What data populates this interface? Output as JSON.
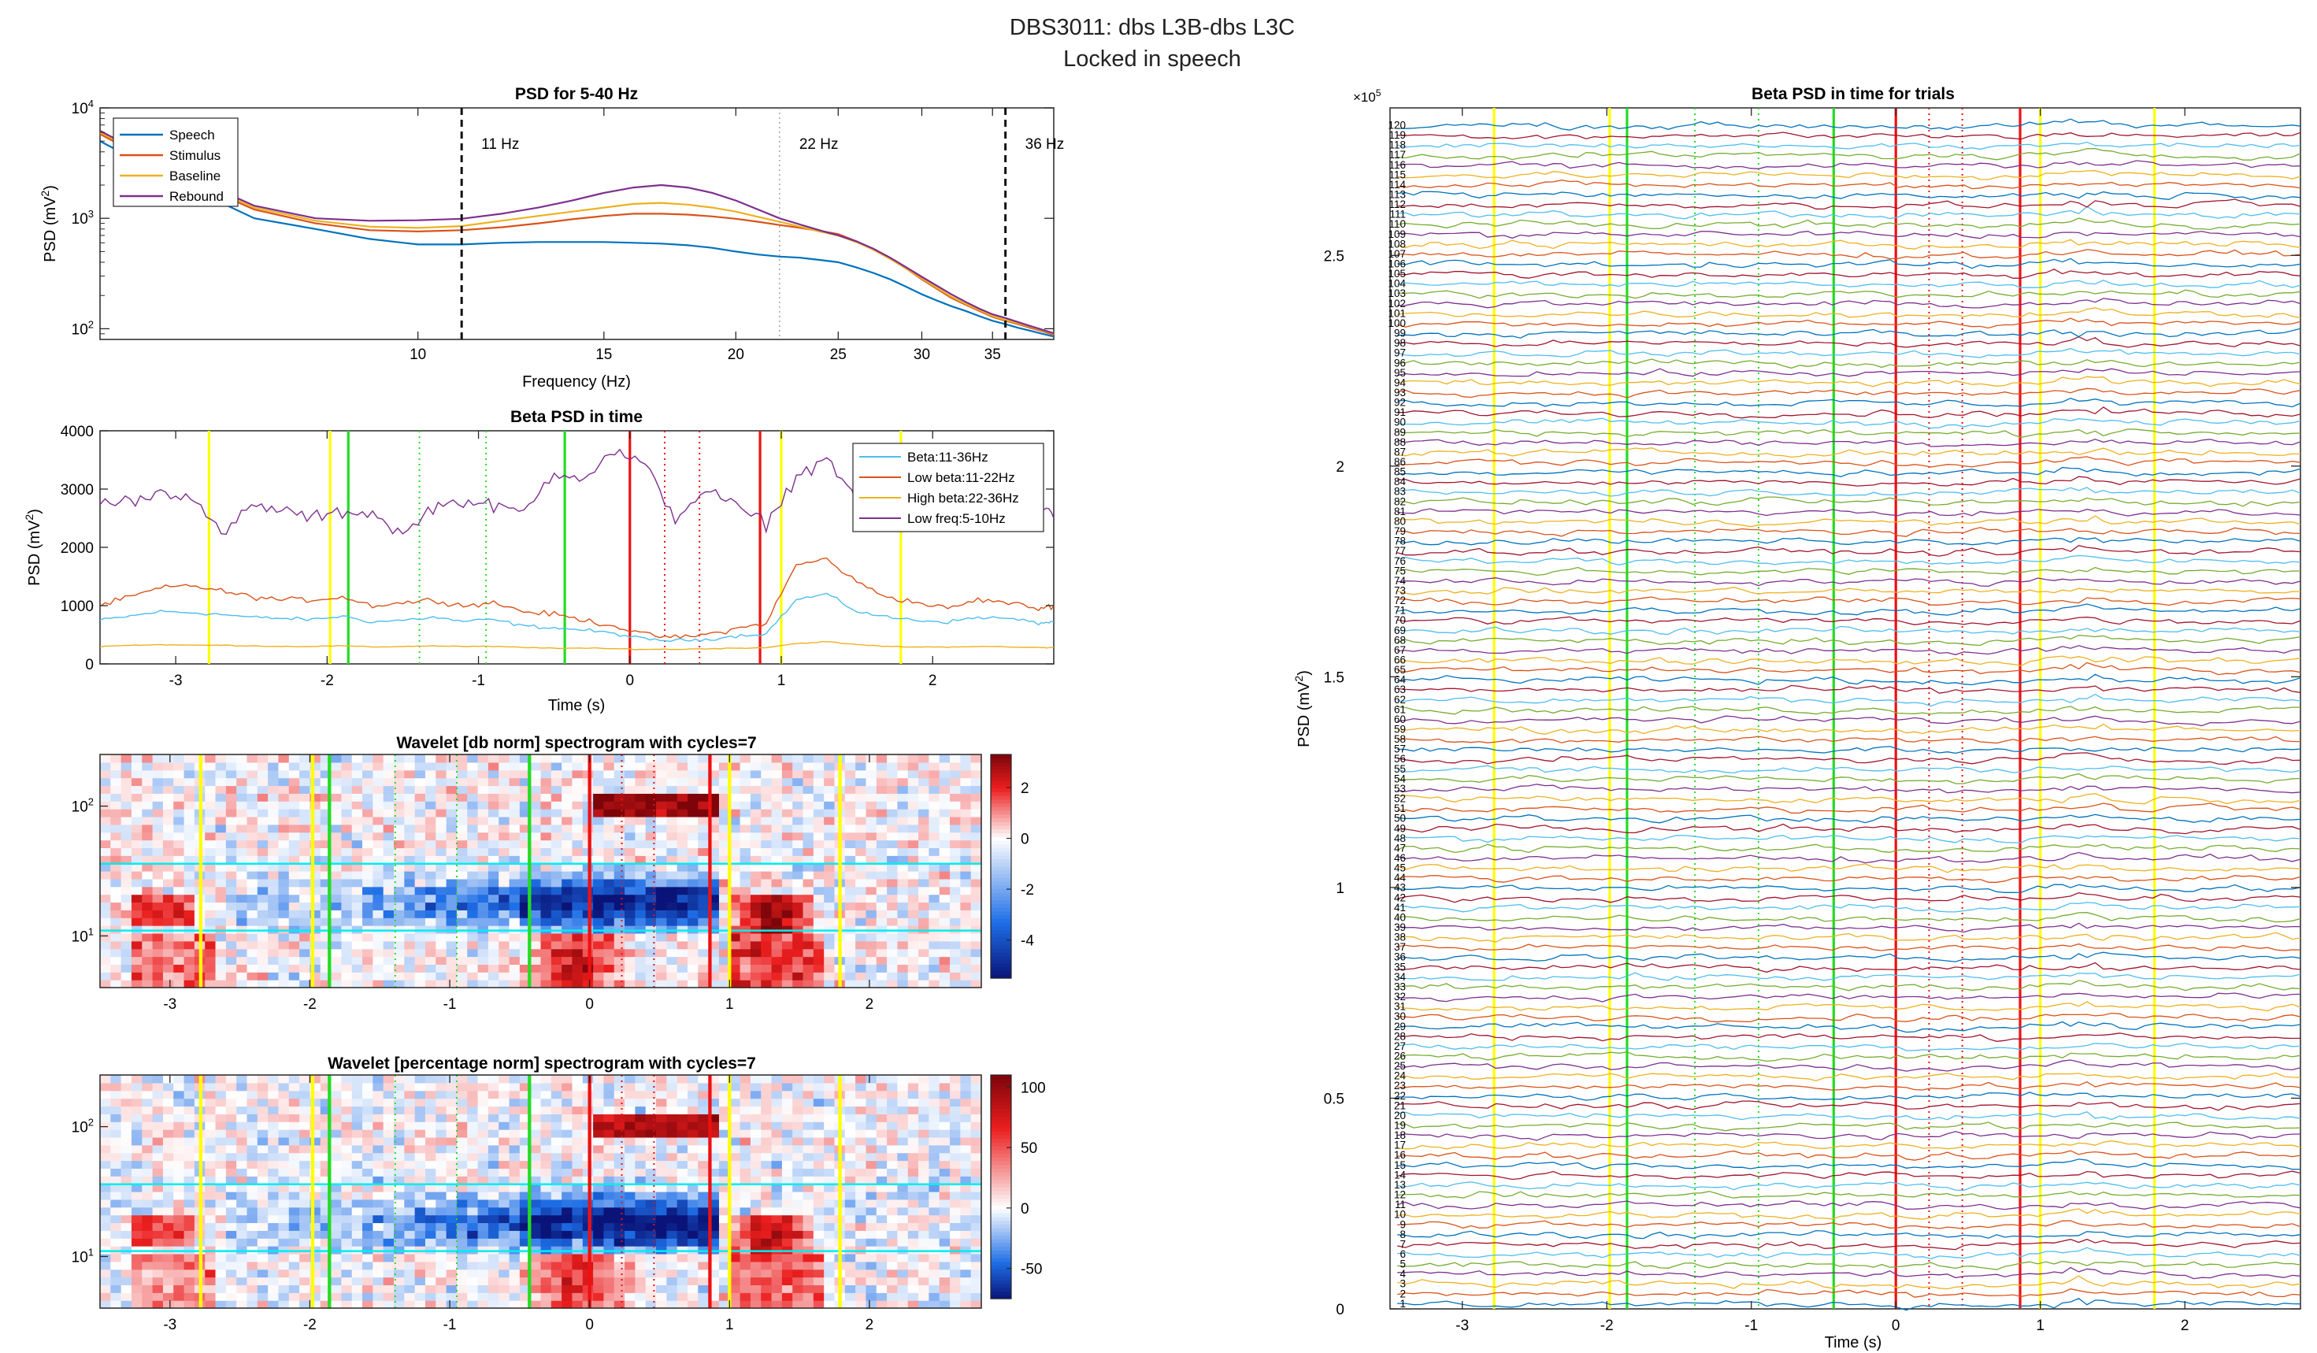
{
  "figure": {
    "title_line1": "DBS3011: dbs L3B-dbs L3C",
    "title_line2": "Locked in speech"
  },
  "colors": {
    "speech": "#0072BD",
    "stimulus": "#D95319",
    "baseline": "#EDB120",
    "rebound": "#7E2F8E",
    "beta": "#4DBEEE",
    "low_beta": "#D95319",
    "high_beta": "#EDB120",
    "low_freq": "#7E2F8E",
    "event_yellow": "#FFFF00",
    "event_green": "#22DD22",
    "event_red": "#EE1111",
    "band_cyan": "#00EEEE"
  },
  "event_lines": [
    {
      "t": -2.78,
      "color": "event_yellow",
      "style": "solid"
    },
    {
      "t": -1.98,
      "color": "event_yellow",
      "style": "solid"
    },
    {
      "t": -1.86,
      "color": "event_green",
      "style": "solid"
    },
    {
      "t": -1.39,
      "color": "event_green",
      "style": "dotted"
    },
    {
      "t": -0.95,
      "color": "event_green",
      "style": "dotted"
    },
    {
      "t": -0.43,
      "color": "event_green",
      "style": "solid"
    },
    {
      "t": 0.0,
      "color": "event_red",
      "style": "solid"
    },
    {
      "t": 0.23,
      "color": "event_red",
      "style": "dotted"
    },
    {
      "t": 0.46,
      "color": "event_red",
      "style": "dotted"
    },
    {
      "t": 0.86,
      "color": "event_red",
      "style": "solid"
    },
    {
      "t": 1.0,
      "color": "event_yellow",
      "style": "solid"
    },
    {
      "t": 1.79,
      "color": "event_yellow",
      "style": "solid"
    }
  ],
  "chart_data": [
    {
      "id": "psd",
      "type": "line",
      "title": "PSD for 5-40 Hz",
      "xlabel": "Frequency (Hz)",
      "ylabel": "PSD (mV",
      "ylabel_sup": "2",
      "ylabel_end": ")",
      "x_scale": "log",
      "y_scale": "log",
      "xlim": [
        5,
        40
      ],
      "ylim": [
        80,
        10000
      ],
      "xticks": [
        10,
        15,
        20,
        25,
        30,
        35
      ],
      "yticks": [
        {
          "v": 100,
          "base": "10",
          "exp": "2"
        },
        {
          "v": 1000,
          "base": "10",
          "exp": "3"
        },
        {
          "v": 10000,
          "base": "10",
          "exp": "4"
        }
      ],
      "legend_position": "top-left",
      "vlines": [
        {
          "x": 11,
          "label": "11 Hz",
          "style": "dashed"
        },
        {
          "x": 22,
          "label": "22 Hz",
          "style": "dotted"
        },
        {
          "x": 36,
          "label": "36 Hz",
          "style": "dashed"
        }
      ],
      "x": [
        5,
        6,
        7,
        8,
        9,
        10,
        11,
        12,
        13,
        14,
        15,
        16,
        17,
        18,
        19,
        20,
        21,
        22,
        23,
        24,
        25,
        26,
        27,
        28,
        29,
        30,
        31,
        32,
        33,
        34,
        35,
        36,
        37,
        38,
        39,
        40
      ],
      "series": [
        {
          "name": "Speech",
          "color": "speech",
          "values": [
            5000,
            2000,
            1000,
            800,
            650,
            580,
            580,
            600,
            610,
            610,
            610,
            600,
            590,
            570,
            540,
            500,
            470,
            450,
            440,
            420,
            400,
            360,
            320,
            280,
            240,
            205,
            180,
            160,
            145,
            130,
            118,
            110,
            102,
            96,
            90,
            85
          ]
        },
        {
          "name": "Stimulus",
          "color": "stimulus",
          "values": [
            5800,
            2300,
            1200,
            900,
            780,
            760,
            780,
            830,
            900,
            980,
            1050,
            1100,
            1100,
            1080,
            1040,
            990,
            930,
            870,
            820,
            770,
            720,
            620,
            520,
            430,
            350,
            280,
            230,
            190,
            165,
            145,
            128,
            118,
            110,
            102,
            95,
            88
          ]
        },
        {
          "name": "Baseline",
          "color": "baseline",
          "values": [
            6000,
            2400,
            1250,
            950,
            840,
            820,
            850,
            950,
            1050,
            1150,
            1250,
            1350,
            1380,
            1330,
            1250,
            1150,
            1030,
            930,
            840,
            760,
            700,
            610,
            520,
            430,
            350,
            285,
            235,
            195,
            168,
            148,
            130,
            120,
            112,
            104,
            97,
            90
          ]
        },
        {
          "name": "Rebound",
          "color": "rebound",
          "values": [
            6200,
            2500,
            1300,
            1000,
            950,
            960,
            990,
            1100,
            1250,
            1450,
            1700,
            1900,
            2000,
            1900,
            1700,
            1450,
            1200,
            1000,
            880,
            780,
            700,
            620,
            530,
            440,
            360,
            295,
            245,
            205,
            175,
            152,
            135,
            125,
            115,
            106,
            98,
            91
          ]
        }
      ]
    },
    {
      "id": "beta_time",
      "type": "line",
      "title": "Beta PSD in time",
      "xlabel": "Time (s)",
      "ylabel": "PSD (mV",
      "ylabel_sup": "2",
      "ylabel_end": ")",
      "xlim": [
        -3.5,
        2.8
      ],
      "ylim": [
        0,
        4000
      ],
      "xticks": [
        -3,
        -2,
        -1,
        0,
        1,
        2
      ],
      "yticks": [
        0,
        1000,
        2000,
        3000,
        4000
      ],
      "legend_position": "top-right",
      "x": [
        -3.5,
        -3.3,
        -3.1,
        -2.9,
        -2.7,
        -2.5,
        -2.3,
        -2.1,
        -1.9,
        -1.7,
        -1.5,
        -1.3,
        -1.1,
        -0.9,
        -0.7,
        -0.5,
        -0.3,
        -0.1,
        0.1,
        0.3,
        0.5,
        0.7,
        0.9,
        1.1,
        1.3,
        1.5,
        1.7,
        1.9,
        2.1,
        2.3,
        2.5,
        2.7,
        2.8
      ],
      "series": [
        {
          "name": "Beta:11-36Hz",
          "color": "beta",
          "values": [
            750,
            820,
            900,
            880,
            850,
            800,
            780,
            760,
            820,
            720,
            750,
            800,
            730,
            760,
            650,
            620,
            580,
            520,
            420,
            400,
            420,
            480,
            520,
            1100,
            1200,
            900,
            800,
            750,
            720,
            800,
            780,
            700,
            720
          ]
        },
        {
          "name": "Low beta:11-22Hz",
          "color": "low_beta",
          "values": [
            1000,
            1150,
            1300,
            1350,
            1250,
            1150,
            1100,
            1100,
            1150,
            1000,
            1050,
            1100,
            1000,
            1050,
            900,
            850,
            750,
            650,
            500,
            450,
            500,
            600,
            700,
            1700,
            1800,
            1400,
            1150,
            1050,
            950,
            1100,
            1050,
            950,
            1000
          ]
        },
        {
          "name": "High beta:22-36Hz",
          "color": "high_beta",
          "values": [
            300,
            320,
            330,
            320,
            320,
            310,
            300,
            300,
            310,
            290,
            300,
            310,
            300,
            300,
            280,
            270,
            270,
            260,
            250,
            250,
            260,
            270,
            280,
            350,
            380,
            330,
            300,
            290,
            290,
            300,
            290,
            280,
            280
          ]
        },
        {
          "name": "Low freq:5-10Hz",
          "color": "low_freq",
          "values": [
            2750,
            2800,
            2950,
            2900,
            2200,
            2700,
            2650,
            2500,
            2600,
            2600,
            2200,
            2700,
            2800,
            2700,
            2600,
            3300,
            3200,
            3650,
            3400,
            2500,
            3000,
            2700,
            2400,
            3200,
            3550,
            2800,
            2600,
            2700,
            2850,
            2800,
            2600,
            2750,
            2500
          ]
        }
      ]
    },
    {
      "id": "wavelet_db",
      "type": "heatmap",
      "title": "Wavelet [db norm] spectrogram with cycles=7",
      "xlim": [
        -3.5,
        2.8
      ],
      "y_scale": "log",
      "ylim": [
        4,
        250
      ],
      "xticks": [
        -3,
        -2,
        -1,
        0,
        1,
        2
      ],
      "yticks": [
        {
          "v": 10,
          "base": "10",
          "exp": "1"
        },
        {
          "v": 100,
          "base": "10",
          "exp": "2"
        }
      ],
      "hlines": [
        11,
        36
      ],
      "colorbar": {
        "clim": [
          -5.5,
          3.3
        ],
        "ticks": [
          -4,
          -2,
          0,
          2
        ],
        "labels": [
          "-4",
          "-2",
          "0",
          "2"
        ]
      }
    },
    {
      "id": "wavelet_pct",
      "type": "heatmap",
      "title": "Wavelet [percentage norm] spectrogram with cycles=7",
      "xlim": [
        -3.5,
        2.8
      ],
      "y_scale": "log",
      "ylim": [
        4,
        250
      ],
      "xticks": [
        -3,
        -2,
        -1,
        0,
        1,
        2
      ],
      "yticks": [
        {
          "v": 10,
          "base": "10",
          "exp": "1"
        },
        {
          "v": 100,
          "base": "10",
          "exp": "2"
        }
      ],
      "hlines": [
        11,
        36
      ],
      "colorbar": {
        "clim": [
          -75,
          110
        ],
        "ticks": [
          -50,
          0,
          50,
          100
        ],
        "labels": [
          "-50",
          "0",
          "50",
          "100"
        ]
      }
    },
    {
      "id": "trials",
      "type": "line",
      "title": "Beta PSD in time for trials",
      "xlabel": "Time (s)",
      "ylabel": "PSD (mV",
      "ylabel_sup": "2",
      "ylabel_end": ")",
      "y_multiplier_base": "×10",
      "y_multiplier_exp": "5",
      "xlim": [
        -3.5,
        2.8
      ],
      "ylim": [
        0,
        2.85
      ],
      "xticks": [
        -3,
        -2,
        -1,
        0,
        1,
        2
      ],
      "yticks": [
        0,
        0.5,
        1,
        1.5,
        2,
        2.5
      ],
      "ytick_labels": [
        "0",
        "0.5",
        "1",
        "1.5",
        "2",
        "2.5"
      ],
      "n_trials": 120
    }
  ]
}
